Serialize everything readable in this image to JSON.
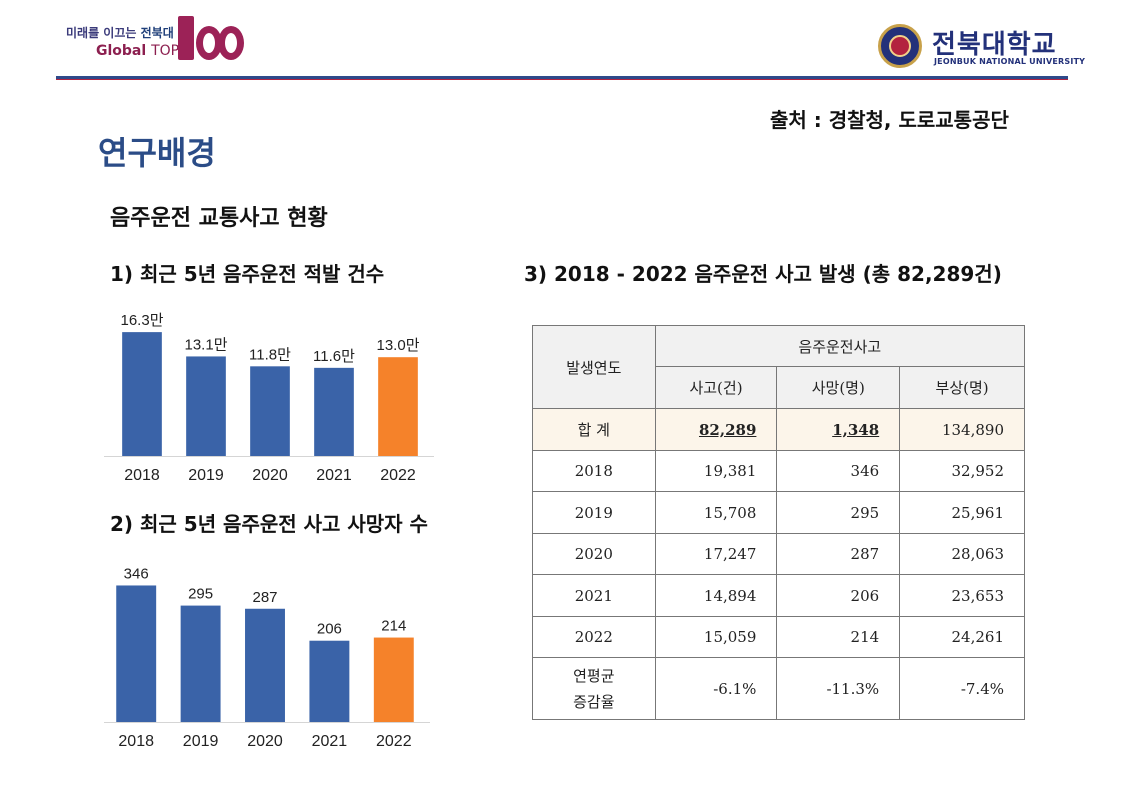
{
  "header": {
    "slogan_lead": "미래를 이끄는",
    "slogan_brand": "전북대",
    "global_label": "Global",
    "top_label": "TOP",
    "hundred_label": "100",
    "university_name_ko": "전북대학교",
    "university_name_en": "JEONBUK NATIONAL UNIVERSITY"
  },
  "source_note": "출처 : 경찰청, 도로교통공단",
  "page_title": "연구배경",
  "subtitle": "음주운전 교통사고 현황",
  "section1": {
    "title": "1) 최근 5년 음주운전 적발 건수"
  },
  "section2": {
    "title": "2) 최근 5년 음주운전 사고 사망자 수"
  },
  "section3": {
    "title": "3) 2018 - 2022 음주운전 사고 발생 (총 82,289건)"
  },
  "colors": {
    "bar_default": "#3a63a8",
    "bar_highlight": "#f5822a",
    "title_blue": "#2b4c87"
  },
  "chart_data": [
    {
      "type": "bar",
      "title": "1) 최근 5년 음주운전 적발 건수",
      "categories": [
        "2018",
        "2019",
        "2020",
        "2021",
        "2022"
      ],
      "values": [
        16.3,
        13.1,
        11.8,
        11.6,
        13.0
      ],
      "data_labels": [
        "16.3만",
        "13.1만",
        "11.8만",
        "11.6만",
        "13.0만"
      ],
      "highlight_index": 4,
      "ylim": [
        0,
        17.5
      ],
      "xlabel": "",
      "ylabel": "",
      "grid": false,
      "legend": "none"
    },
    {
      "type": "bar",
      "title": "2) 최근 5년 음주운전 사고 사망자 수",
      "categories": [
        "2018",
        "2019",
        "2020",
        "2021",
        "2022"
      ],
      "values": [
        346,
        295,
        287,
        206,
        214
      ],
      "data_labels": [
        "346",
        "295",
        "287",
        "206",
        "214"
      ],
      "highlight_index": 4,
      "ylim": [
        0,
        370
      ],
      "xlabel": "",
      "ylabel": "",
      "grid": false,
      "legend": "none"
    }
  ],
  "table": {
    "header_year": "발생연도",
    "header_group": "음주운전사고",
    "col_accidents": "사고(건)",
    "col_deaths": "사망(명)",
    "col_injuries": "부상(명)",
    "total_label": "합 계",
    "total_accidents": "82,289",
    "total_deaths": "1,348",
    "total_injuries": "134,890",
    "rows": [
      {
        "year": "2018",
        "accidents": "19,381",
        "deaths": "346",
        "injuries": "32,952"
      },
      {
        "year": "2019",
        "accidents": "15,708",
        "deaths": "295",
        "injuries": "25,961"
      },
      {
        "year": "2020",
        "accidents": "17,247",
        "deaths": "287",
        "injuries": "28,063"
      },
      {
        "year": "2021",
        "accidents": "14,894",
        "deaths": "206",
        "injuries": "23,653"
      },
      {
        "year": "2022",
        "accidents": "15,059",
        "deaths": "214",
        "injuries": "24,261"
      }
    ],
    "rate_label_line1": "연평균",
    "rate_label_line2": "증감율",
    "rate_accidents": "-6.1%",
    "rate_deaths": "-11.3%",
    "rate_injuries": "-7.4%"
  }
}
